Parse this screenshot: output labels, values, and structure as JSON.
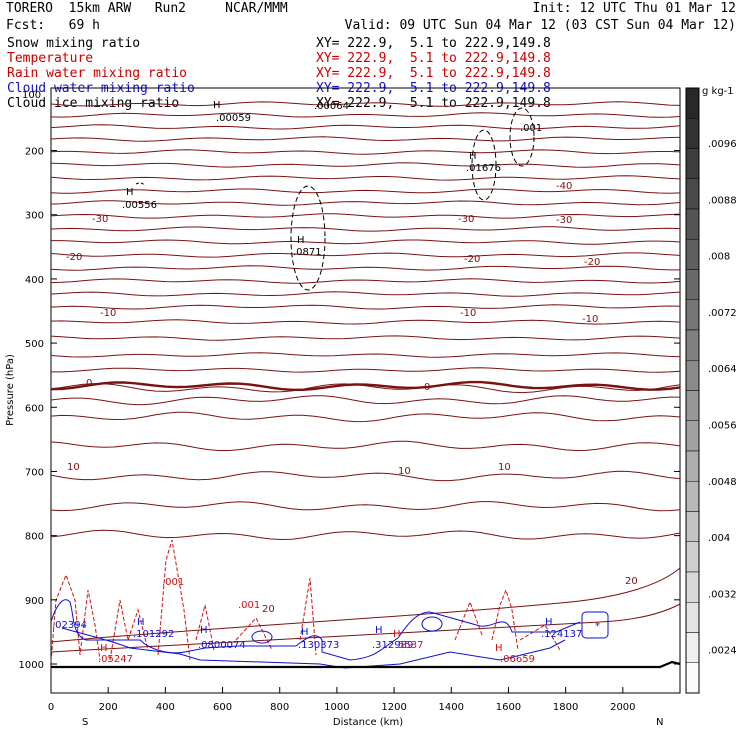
{
  "header": {
    "model": "TORERO  15km ARW   Run2     NCAR/MMM",
    "init": "Init: 12 UTC Thu 01 Mar 12",
    "fcst": "Fcst:   69 h",
    "valid": "Valid: 09 UTC Sun 04 Mar 12 (03 CST Sun 04 Mar 12)"
  },
  "legend": [
    {
      "name": "Snow mixing ratio",
      "xy": "XY= 222.9,  5.1 to 222.9,149.8",
      "color": "#000000"
    },
    {
      "name": "Temperature",
      "xy": "XY= 222.9,  5.1 to 222.9,149.8",
      "color": "#cc0000"
    },
    {
      "name": "Rain water mixing ratio",
      "xy": "XY= 222.9,  5.1 to 222.9,149.8",
      "color": "#cc0000"
    },
    {
      "name": "Cloud water mixing ratio",
      "xy": "XY= 222.9,  5.1 to 222.9,149.8",
      "color": "#1010cc"
    },
    {
      "name": "Cloud ice mixing ratio",
      "xy": "XY= 222.9,  5.1 to 222.9,149.8",
      "color": "#000000"
    }
  ],
  "chart_data": {
    "type": "line",
    "xlabel": "Distance (km)",
    "ylabel": "Pressure (hPa)",
    "xlim": [
      0,
      2200
    ],
    "ylim": [
      1000,
      100
    ],
    "x_ticks": [
      "0",
      "200",
      "400",
      "600",
      "800",
      "1000",
      "1200",
      "1400",
      "1600",
      "1800",
      "2000"
    ],
    "y_ticks": [
      "200",
      "300",
      "400",
      "500",
      "600",
      "700",
      "800",
      "900",
      "1000"
    ],
    "y_top_label": "100",
    "direction_left": "S",
    "direction_right": "N",
    "temperature_labels": [
      "-30",
      "-20",
      "-10",
      "0",
      "10",
      "20",
      "-40",
      "-30",
      "-20",
      "-10",
      "0",
      "10",
      "20",
      "-30"
    ],
    "maxima": [
      {
        "mark": "H",
        "value": ".00059"
      },
      {
        "mark": "H",
        "value": ".00556"
      },
      {
        "mark": "H",
        "value": ".0871"
      },
      {
        "mark": "H",
        "value": ".01676"
      },
      {
        "mark": "H",
        "value": ".001"
      },
      {
        "mark": "",
        "value": ".00064"
      },
      {
        "mark": "",
        "value": ".001"
      },
      {
        "mark": "",
        "value": ".001"
      },
      {
        "mark": "H",
        "value": ".101292"
      },
      {
        "mark": "H",
        "value": ".130373"
      },
      {
        "mark": "H",
        "value": ".124137"
      },
      {
        "mark": "H",
        "value": ".0800074"
      },
      {
        "mark": "H",
        "value": ".312989"
      },
      {
        "mark": "",
        "value": ".05247"
      },
      {
        "mark": "",
        "value": ".06659"
      },
      {
        "mark": "",
        "value": ".02394"
      },
      {
        "mark": "",
        "value": "5537"
      }
    ],
    "colorbar": {
      "unit": "g kg-1",
      "labels": [
        ".0096",
        ".0088",
        ".008",
        ".0072",
        ".0064",
        ".0056",
        ".0048",
        ".004",
        ".0032",
        ".0024"
      ]
    }
  }
}
